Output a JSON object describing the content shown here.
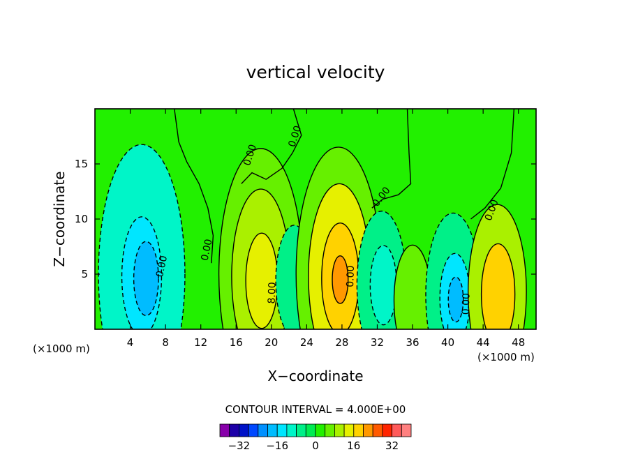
{
  "chart_data": {
    "type": "contour",
    "title": "vertical velocity",
    "xlabel": "X−coordinate",
    "ylabel": "Z−coordinate",
    "x_unit_left": "(×1000 m)",
    "x_unit_right": "(×1000 m)",
    "xlim": [
      0,
      50
    ],
    "ylim": [
      0,
      20
    ],
    "x_ticks": [
      4,
      8,
      12,
      16,
      20,
      24,
      28,
      32,
      36,
      40,
      44,
      48
    ],
    "y_ticks": [
      5,
      10,
      15
    ],
    "background_color": "#22f000",
    "contour_interval_label": "CONTOUR INTERVAL = 4.000E+00",
    "contour_interval": 4,
    "contour_labels": [
      {
        "text": "0.00",
        "x": 22.7,
        "y": 17.5,
        "angle": -72
      },
      {
        "text": "0.00",
        "x": 17.6,
        "y": 15.8,
        "angle": -72
      },
      {
        "text": "0.00",
        "x": 32.5,
        "y": 12.0,
        "angle": -52
      },
      {
        "text": "0.00",
        "x": 45.0,
        "y": 10.8,
        "angle": -70
      },
      {
        "text": "0.00",
        "x": 12.7,
        "y": 7.2,
        "angle": -78
      },
      {
        "text": "0.00",
        "x": 7.6,
        "y": 5.7,
        "angle": -78
      },
      {
        "text": "8.00",
        "x": 20.1,
        "y": 3.3,
        "angle": -88
      },
      {
        "text": "0.00",
        "x": 29.0,
        "y": 4.8,
        "angle": -88
      },
      {
        "text": "0.00",
        "x": 42.1,
        "y": 2.3,
        "angle": -88
      }
    ],
    "cells": [
      {
        "x": 5.3,
        "z": 5.0,
        "w": 9.8,
        "value": -12
      },
      {
        "x": 5.3,
        "z": 4.8,
        "w": 4.5,
        "value": -16
      },
      {
        "x": 5.8,
        "z": 4.6,
        "w": 2.8,
        "value": -20
      },
      {
        "x": 18.8,
        "z": 5.0,
        "w": 9.5,
        "value": 4
      },
      {
        "x": 18.8,
        "z": 4.8,
        "w": 6.6,
        "value": 8
      },
      {
        "x": 18.9,
        "z": 4.4,
        "w": 3.6,
        "value": 12
      },
      {
        "x": 22.6,
        "z": 4.4,
        "w": 4.2,
        "value": -8
      },
      {
        "x": 27.6,
        "z": 5.0,
        "w": 9.6,
        "value": 4
      },
      {
        "x": 27.7,
        "z": 4.8,
        "w": 7.0,
        "value": 12
      },
      {
        "x": 27.8,
        "z": 4.6,
        "w": 4.2,
        "value": 16
      },
      {
        "x": 27.8,
        "z": 4.5,
        "w": 1.8,
        "value": 20
      },
      {
        "x": 32.5,
        "z": 4.0,
        "w": 5.6,
        "value": -8
      },
      {
        "x": 32.7,
        "z": 4.0,
        "w": 3.0,
        "value": -12
      },
      {
        "x": 36.0,
        "z": 2.6,
        "w": 4.2,
        "value": 4
      },
      {
        "x": 40.6,
        "z": 3.1,
        "w": 6.2,
        "value": -8
      },
      {
        "x": 40.8,
        "z": 2.8,
        "w": 3.4,
        "value": -16
      },
      {
        "x": 40.9,
        "z": 2.7,
        "w": 1.7,
        "value": -20
      },
      {
        "x": 45.6,
        "z": 3.4,
        "w": 6.6,
        "value": 8
      },
      {
        "x": 45.7,
        "z": 3.2,
        "w": 3.8,
        "value": 16
      }
    ],
    "colorbar": {
      "tick_labels": [
        "−32",
        "−16",
        "0",
        "16",
        "32"
      ],
      "tick_values": [
        -32,
        -16,
        0,
        16,
        32
      ],
      "range": [
        -40,
        40
      ],
      "colors": [
        "#8800aa",
        "#1d00a8",
        "#0012c8",
        "#0048ff",
        "#0090ff",
        "#00bcff",
        "#00e6ff",
        "#00f5c8",
        "#00f088",
        "#00ec52",
        "#22f000",
        "#66f000",
        "#aaf000",
        "#e6f000",
        "#ffd200",
        "#ff9800",
        "#ff5a00",
        "#ff2400",
        "#ff5a5a",
        "#ff8080"
      ]
    }
  }
}
